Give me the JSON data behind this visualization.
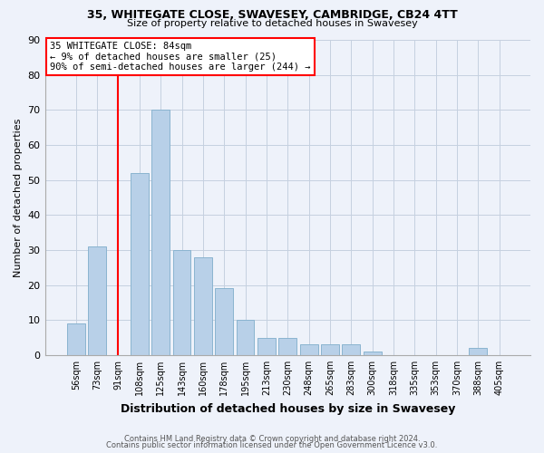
{
  "title": "35, WHITEGATE CLOSE, SWAVESEY, CAMBRIDGE, CB24 4TT",
  "subtitle": "Size of property relative to detached houses in Swavesey",
  "xlabel": "Distribution of detached houses by size in Swavesey",
  "ylabel": "Number of detached properties",
  "bar_labels": [
    "56sqm",
    "73sqm",
    "91sqm",
    "108sqm",
    "125sqm",
    "143sqm",
    "160sqm",
    "178sqm",
    "195sqm",
    "213sqm",
    "230sqm",
    "248sqm",
    "265sqm",
    "283sqm",
    "300sqm",
    "318sqm",
    "335sqm",
    "353sqm",
    "370sqm",
    "388sqm",
    "405sqm"
  ],
  "bar_values": [
    9,
    31,
    0,
    52,
    70,
    30,
    28,
    19,
    10,
    5,
    5,
    3,
    3,
    3,
    1,
    0,
    0,
    0,
    0,
    2,
    0
  ],
  "bar_color": "#b8d0e8",
  "bar_edge_color": "#8ab4d0",
  "ylim": [
    0,
    90
  ],
  "yticks": [
    0,
    10,
    20,
    30,
    40,
    50,
    60,
    70,
    80,
    90
  ],
  "vline_x": 2.0,
  "vline_color": "red",
  "annotation_title": "35 WHITEGATE CLOSE: 84sqm",
  "annotation_line1": "← 9% of detached houses are smaller (25)",
  "annotation_line2": "90% of semi-detached houses are larger (244) →",
  "annotation_box_color": "white",
  "annotation_box_edge_color": "red",
  "footer_line1": "Contains HM Land Registry data © Crown copyright and database right 2024.",
  "footer_line2": "Contains public sector information licensed under the Open Government Licence v3.0.",
  "background_color": "#eef2fa",
  "grid_color": "#c5d0e0"
}
